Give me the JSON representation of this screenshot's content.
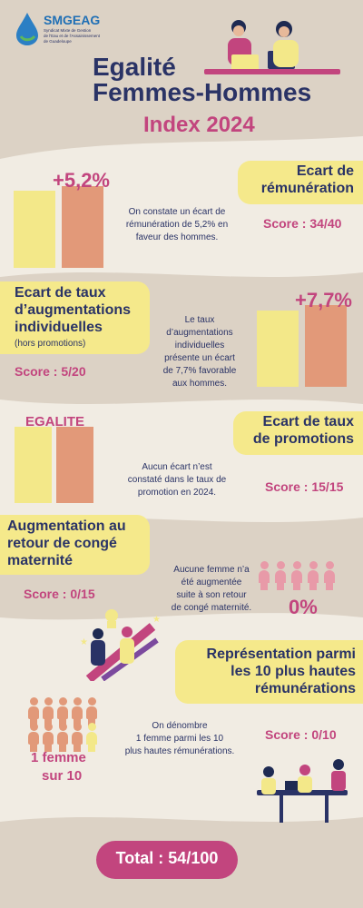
{
  "logo": {
    "name": "SMGEAG",
    "tagline_1": "Syndicat Mixte de Gestion",
    "tagline_2": "de l'Eau et de l'Assainissement",
    "tagline_3": "de Guadeloupe"
  },
  "header": {
    "title_line1": "Egalité",
    "title_line2": "Femmes-Hommes",
    "subtitle": "Index 2024"
  },
  "sections": {
    "remuneration": {
      "title_line1": "Ecart de",
      "title_line2": "rémunération",
      "value": "+5,2%",
      "desc_1": "On constate un écart de",
      "desc_2": "rémunération de 5,2% en",
      "desc_3": "faveur des hommes.",
      "score": "Score : 34/40"
    },
    "augmentations": {
      "title_line1": "Ecart de taux",
      "title_line2": "d’augmentations",
      "title_line3": "individuelles",
      "note": "(hors promotions)",
      "value": "+7,7%",
      "desc_1": "Le taux",
      "desc_2": "d’augmentations",
      "desc_3": "individuelles",
      "desc_4": "présente un écart",
      "desc_5": "de 7,7% favorable",
      "desc_6": "aux hommes.",
      "score": "Score : 5/20"
    },
    "promotions": {
      "title_line1": "Ecart de taux",
      "title_line2": "de promotions",
      "value": "EGALITE",
      "desc_1": "Aucun écart n’est",
      "desc_2": "constaté dans le taux de",
      "desc_3": "promotion en 2024.",
      "score": "Score : 15/15"
    },
    "maternite": {
      "title_line1": "Augmentation au",
      "title_line2": "retour de congé",
      "title_line3": "maternité",
      "desc_1": "Aucune femme n’a",
      "desc_2": "été augmentée",
      "desc_3": "suite à son retour",
      "desc_4": "de congé maternité.",
      "value": "0%",
      "score": "Score : 0/15"
    },
    "top10": {
      "title_line1": "Représentation parmi",
      "title_line2": "les 10 plus hautes",
      "title_line3": "rémunérations",
      "desc_1": "On dénombre",
      "desc_2": "1 femme parmi les 10",
      "desc_3": "plus hautes rémunérations.",
      "value_1": "1 femme",
      "value_2": "sur 10",
      "score": "Score : 0/10"
    }
  },
  "total": {
    "label": "Total : 54/100"
  },
  "colors": {
    "background": "#dcd2c5",
    "navy": "#2a3366",
    "pink": "#c2457e",
    "yellow": "#f3e889",
    "orange": "#e29979",
    "light_band": "#f1ece3"
  }
}
